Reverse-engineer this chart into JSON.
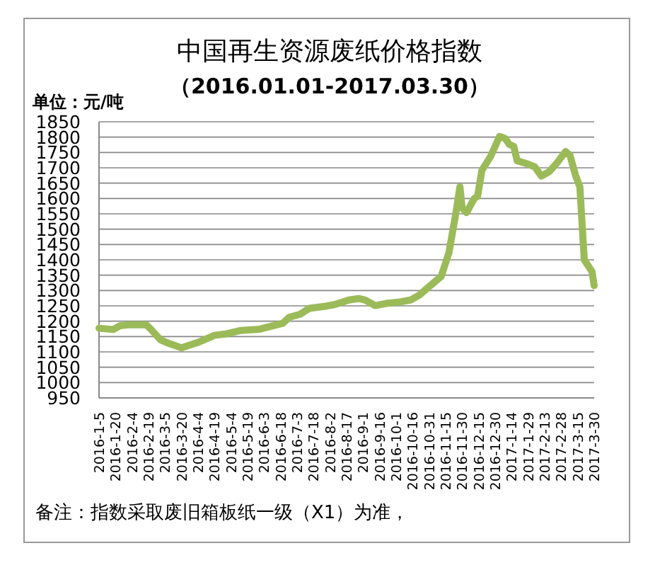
{
  "chart_data": {
    "type": "line",
    "title": "中国再生资源废纸价格指数",
    "subtitle": "（2016.01.01-2017.03.30）",
    "ylabel": "单位：元/吨",
    "annotations": [
      "备注：指数采取废旧箱板纸一级（X1）为准，"
    ],
    "x": [
      "2016-01-05",
      "2016-01-18",
      "2016-01-24",
      "2016-01-31",
      "2016-02-17",
      "2016-02-21",
      "2016-03-01",
      "2016-03-09",
      "2016-03-20",
      "2016-04-04",
      "2016-04-19",
      "2016-04-30",
      "2016-05-13",
      "2016-05-30",
      "2016-06-11",
      "2016-06-20",
      "2016-06-26",
      "2016-07-06",
      "2016-07-14",
      "2016-07-29",
      "2016-08-06",
      "2016-08-19",
      "2016-08-28",
      "2016-09-03",
      "2016-09-12",
      "2016-09-22",
      "2016-10-03",
      "2016-10-14",
      "2016-10-22",
      "2016-11-02",
      "2016-11-11",
      "2016-11-18",
      "2016-11-24",
      "2016-11-28",
      "2016-11-30",
      "2016-12-04",
      "2016-12-11",
      "2016-12-14",
      "2016-12-18",
      "2016-12-26",
      "2017-01-03",
      "2017-01-08",
      "2017-01-12",
      "2017-01-16",
      "2017-01-19",
      "2017-01-29",
      "2017-02-04",
      "2017-02-10",
      "2017-02-17",
      "2017-02-24",
      "2017-03-04",
      "2017-03-08",
      "2017-03-13",
      "2017-03-17",
      "2017-03-21",
      "2017-03-28",
      "2017-03-30"
    ],
    "series": [
      {
        "color": "#9bbb59",
        "values": [
          1177,
          1173,
          1185,
          1188,
          1188,
          1174,
          1139,
          1127,
          1113,
          1131,
          1154,
          1159,
          1170,
          1174,
          1185,
          1193,
          1213,
          1223,
          1242,
          1249,
          1254,
          1269,
          1274,
          1269,
          1251,
          1258,
          1262,
          1269,
          1285,
          1319,
          1346,
          1423,
          1546,
          1638,
          1569,
          1554,
          1600,
          1607,
          1692,
          1738,
          1802,
          1796,
          1776,
          1769,
          1723,
          1712,
          1703,
          1673,
          1687,
          1715,
          1753,
          1741,
          1676,
          1638,
          1400,
          1362,
          1316
        ]
      }
    ],
    "xlim": [
      "2016-01-05",
      "2017-03-30"
    ],
    "xticks": [
      {
        "value": "2016-01-05",
        "label": "2016-1-5"
      },
      {
        "value": "2016-01-20",
        "label": "2016-1-20"
      },
      {
        "value": "2016-02-04",
        "label": "2016-2-4"
      },
      {
        "value": "2016-02-19",
        "label": "2016-2-19"
      },
      {
        "value": "2016-03-05",
        "label": "2016-3-5"
      },
      {
        "value": "2016-03-20",
        "label": "2016-3-20"
      },
      {
        "value": "2016-04-04",
        "label": "2016-4-4"
      },
      {
        "value": "2016-04-19",
        "label": "2016-4-19"
      },
      {
        "value": "2016-05-04",
        "label": "2016-5-4"
      },
      {
        "value": "2016-05-19",
        "label": "2016-5-19"
      },
      {
        "value": "2016-06-03",
        "label": "2016-6-3"
      },
      {
        "value": "2016-06-18",
        "label": "2016-6-18"
      },
      {
        "value": "2016-07-03",
        "label": "2016-7-3"
      },
      {
        "value": "2016-07-18",
        "label": "2016-7-18"
      },
      {
        "value": "2016-08-02",
        "label": "2016-8-2"
      },
      {
        "value": "2016-08-17",
        "label": "2016-8-17"
      },
      {
        "value": "2016-09-01",
        "label": "2016-9-1"
      },
      {
        "value": "2016-09-16",
        "label": "2016-9-16"
      },
      {
        "value": "2016-10-01",
        "label": "2016-10-1"
      },
      {
        "value": "2016-10-16",
        "label": "2016-10-16"
      },
      {
        "value": "2016-10-31",
        "label": "2016-10-31"
      },
      {
        "value": "2016-11-15",
        "label": "2016-11-15"
      },
      {
        "value": "2016-11-30",
        "label": "2016-11-30"
      },
      {
        "value": "2016-12-15",
        "label": "2016-12-15"
      },
      {
        "value": "2016-12-30",
        "label": "2016-12-30"
      },
      {
        "value": "2017-01-14",
        "label": "2017-1-14"
      },
      {
        "value": "2017-01-29",
        "label": "2017-1-29"
      },
      {
        "value": "2017-02-13",
        "label": "2017-2-13"
      },
      {
        "value": "2017-02-28",
        "label": "2017-2-28"
      },
      {
        "value": "2017-03-15",
        "label": "2017-3-15"
      },
      {
        "value": "2017-03-30",
        "label": "2017-3-30"
      }
    ],
    "ylim": [
      950,
      1850
    ],
    "yticks": [
      950,
      1000,
      1050,
      1100,
      1150,
      1200,
      1250,
      1300,
      1350,
      1400,
      1450,
      1500,
      1550,
      1600,
      1650,
      1700,
      1750,
      1800,
      1850
    ],
    "grid": "y",
    "line_style": "solid"
  }
}
